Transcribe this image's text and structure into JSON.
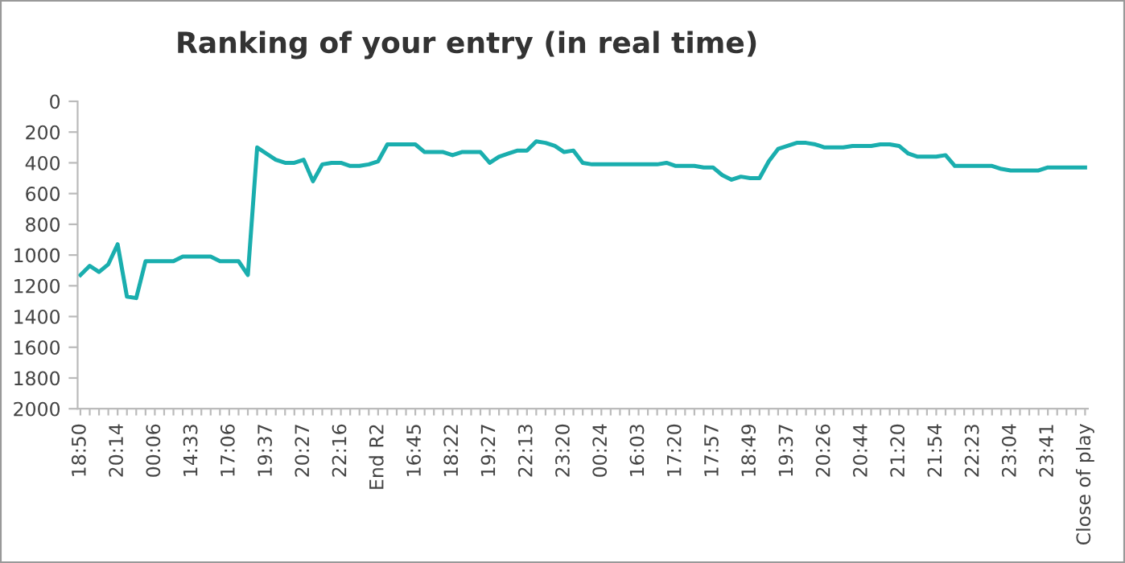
{
  "chart_data": {
    "type": "line",
    "title": "Ranking of your entry (in real time)",
    "categories": [
      "18:50",
      null,
      null,
      null,
      "20:14",
      null,
      null,
      null,
      "00:06",
      null,
      null,
      null,
      "14:33",
      null,
      null,
      null,
      "17:06",
      null,
      null,
      null,
      "19:37",
      null,
      null,
      null,
      "20:27",
      null,
      null,
      null,
      "22:16",
      null,
      null,
      null,
      "End R2",
      null,
      null,
      null,
      "16:45",
      null,
      null,
      null,
      "18:22",
      null,
      null,
      null,
      "19:27",
      null,
      null,
      null,
      "22:13",
      null,
      null,
      null,
      "23:20",
      null,
      null,
      null,
      "00:24",
      null,
      null,
      null,
      "16:03",
      null,
      null,
      null,
      "17:20",
      null,
      null,
      null,
      "17:57",
      null,
      null,
      null,
      "18:49",
      null,
      null,
      null,
      "19:37",
      null,
      null,
      null,
      "20:26",
      null,
      null,
      null,
      "20:44",
      null,
      null,
      null,
      "21:20",
      null,
      null,
      null,
      "21:54",
      null,
      null,
      null,
      "22:23",
      null,
      null,
      null,
      "23:04",
      null,
      null,
      null,
      "23:41",
      null,
      null,
      null,
      "Close of play"
    ],
    "series": [
      {
        "color": "#1aaeae",
        "values": [
          1130,
          1070,
          1110,
          1060,
          930,
          1270,
          1280,
          1040,
          1040,
          1040,
          1040,
          1010,
          1010,
          1010,
          1010,
          1040,
          1040,
          1040,
          1130,
          300,
          340,
          380,
          400,
          400,
          380,
          520,
          410,
          400,
          400,
          420,
          420,
          410,
          390,
          280,
          280,
          280,
          280,
          330,
          330,
          330,
          350,
          330,
          330,
          330,
          400,
          360,
          340,
          320,
          320,
          260,
          270,
          290,
          330,
          320,
          400,
          410,
          410,
          410,
          410,
          410,
          410,
          410,
          410,
          400,
          420,
          420,
          420,
          430,
          430,
          480,
          510,
          490,
          500,
          500,
          390,
          310,
          290,
          270,
          270,
          280,
          300,
          300,
          300,
          290,
          290,
          290,
          280,
          280,
          290,
          340,
          360,
          360,
          360,
          350,
          420,
          420,
          420,
          420,
          420,
          440,
          450,
          450,
          450,
          450,
          430,
          430,
          430,
          430,
          430
        ]
      }
    ],
    "ylim": [
      2000,
      0
    ],
    "yticks": [
      0,
      200,
      400,
      600,
      800,
      1000,
      1200,
      1400,
      1600,
      1800,
      2000
    ],
    "grid": false,
    "marker": "none",
    "line_style": "solid"
  }
}
